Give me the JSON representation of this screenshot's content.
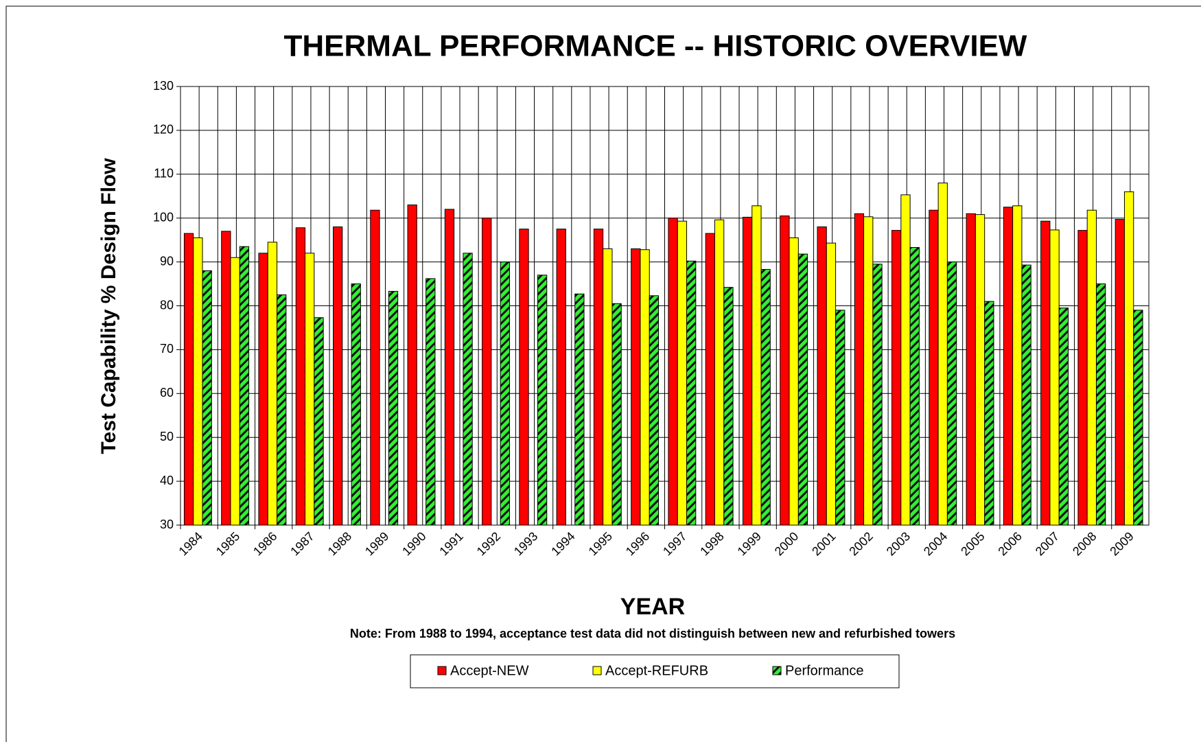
{
  "chart_data": {
    "type": "bar",
    "title": "THERMAL PERFORMANCE -- HISTORIC OVERVIEW",
    "y_label": "Test Capability % Design Flow",
    "x_label": "YEAR",
    "note": "Note:  From 1988 to 1994, acceptance test data did not distinguish between new and refurbished towers",
    "categories": [
      "1984",
      "1985",
      "1986",
      "1987",
      "1988",
      "1989",
      "1990",
      "1991",
      "1992",
      "1993",
      "1994",
      "1995",
      "1996",
      "1997",
      "1998",
      "1999",
      "2000",
      "2001",
      "2002",
      "2003",
      "2004",
      "2005",
      "2006",
      "2007",
      "2008",
      "2009"
    ],
    "series": [
      {
        "name": "Accept-NEW",
        "color": "#ff0000",
        "values": [
          96.5,
          97,
          92,
          97.8,
          98,
          101.8,
          103,
          102,
          100,
          97.5,
          97.5,
          97.5,
          93,
          100,
          96.5,
          100.2,
          100.5,
          98,
          101,
          97.2,
          101.8,
          101,
          102.5,
          99.3,
          97.2,
          99.7
        ]
      },
      {
        "name": "Accept-REFURB",
        "color": "#ffff00",
        "values": [
          95.5,
          91,
          94.5,
          92,
          null,
          null,
          null,
          null,
          null,
          null,
          null,
          93,
          92.8,
          99.3,
          99.6,
          102.8,
          95.5,
          94.3,
          100.3,
          105.3,
          108,
          100.8,
          102.8,
          97.3,
          101.8,
          106
        ]
      },
      {
        "name": "Performance",
        "color": "#33ee33",
        "pattern": "hatch",
        "values": [
          88,
          93.5,
          82.5,
          77.3,
          85,
          83.3,
          86.2,
          92,
          90,
          87,
          82.7,
          80.5,
          82.3,
          90.2,
          84.2,
          88.3,
          91.8,
          79,
          89.5,
          93.3,
          90,
          81,
          89.3,
          79.5,
          85,
          79
        ]
      }
    ],
    "ylim": [
      30,
      130
    ],
    "yticks": [
      30,
      40,
      50,
      60,
      70,
      80,
      90,
      100,
      110,
      120,
      130
    ],
    "grid": true,
    "legend": "bottom"
  }
}
